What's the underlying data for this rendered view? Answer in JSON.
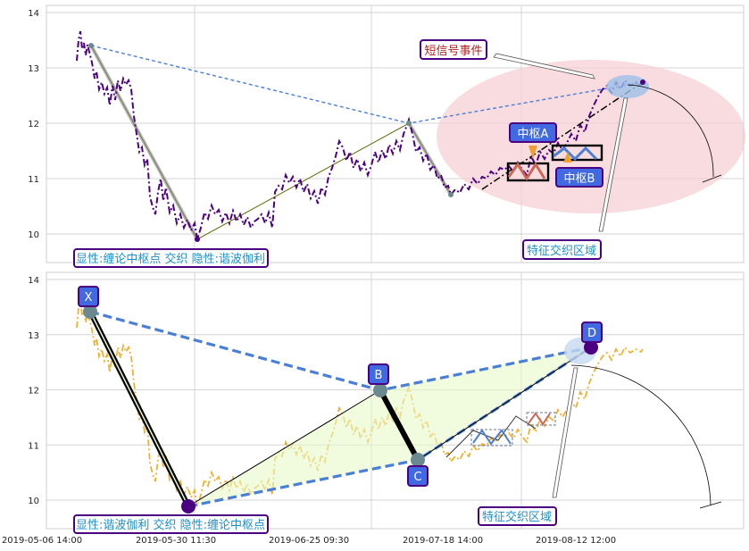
{
  "chart_data": [
    {
      "type": "line",
      "ylim": [
        9.6,
        14.1
      ],
      "yticks": [
        "10",
        "11",
        "12",
        "13",
        "14"
      ],
      "grid": true,
      "series": [],
      "annotations": {
        "short_signal_event": "短信号事件",
        "pivot_a": "中枢A",
        "pivot_b": "中枢B",
        "feature_zone": "特征交织区域",
        "footer": "显性:缠论中枢点 交织 隐性:谐波伽利"
      }
    },
    {
      "type": "line",
      "ylim": [
        9.6,
        14.1
      ],
      "yticks": [
        "10",
        "11",
        "12",
        "13",
        "14"
      ],
      "grid": true,
      "x_tick_labels": [
        "2019-05-06 14:00",
        "2019-05-30 11:30",
        "2019-06-25 09:30",
        "2019-07-18 14:00",
        "2019-08-12 12:00"
      ],
      "harmonic_points": [
        {
          "label": "X",
          "value": 13.4
        },
        {
          "label": "B",
          "value": 12.0
        },
        {
          "label": "C",
          "value": 10.7
        },
        {
          "label": "D",
          "value": 12.75
        }
      ],
      "annotations": {
        "feature_zone": "特征交织区域",
        "footer": "显性:谐波伽利 交织 隐性:缠论中枢点"
      }
    }
  ],
  "colors": {
    "price_top": "#4b0082",
    "price_bottom": "#f0b030",
    "dash_blue": "#4a7fd6",
    "label_box": "#4169e1",
    "label_border": "#4b0082",
    "ellipse": "#f5d0d5",
    "footer_text": "#1e90c8",
    "event_text": "#b22222"
  }
}
